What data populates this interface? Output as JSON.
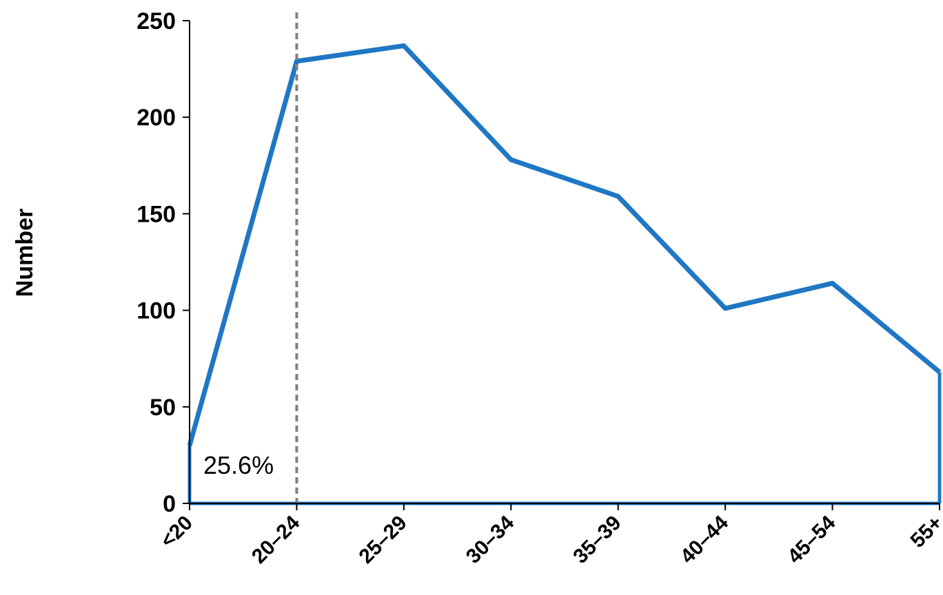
{
  "chart_data": {
    "type": "area",
    "categories": [
      "<20",
      "20–24",
      "25–29",
      "30–34",
      "35–39",
      "40–44",
      "45–54",
      "55+"
    ],
    "values": [
      30,
      229,
      237,
      178,
      159,
      101,
      114,
      68
    ],
    "ylabel": "Number",
    "xlabel": "",
    "ylim": [
      0,
      250
    ],
    "yticks": [
      "0",
      "50",
      "100",
      "150",
      "200",
      "250"
    ],
    "grid": false,
    "series_color": "#1f77c4",
    "reference_line": {
      "category": "20–24",
      "style": "dashed",
      "color": "#808080"
    },
    "annotation": "25.6%"
  }
}
